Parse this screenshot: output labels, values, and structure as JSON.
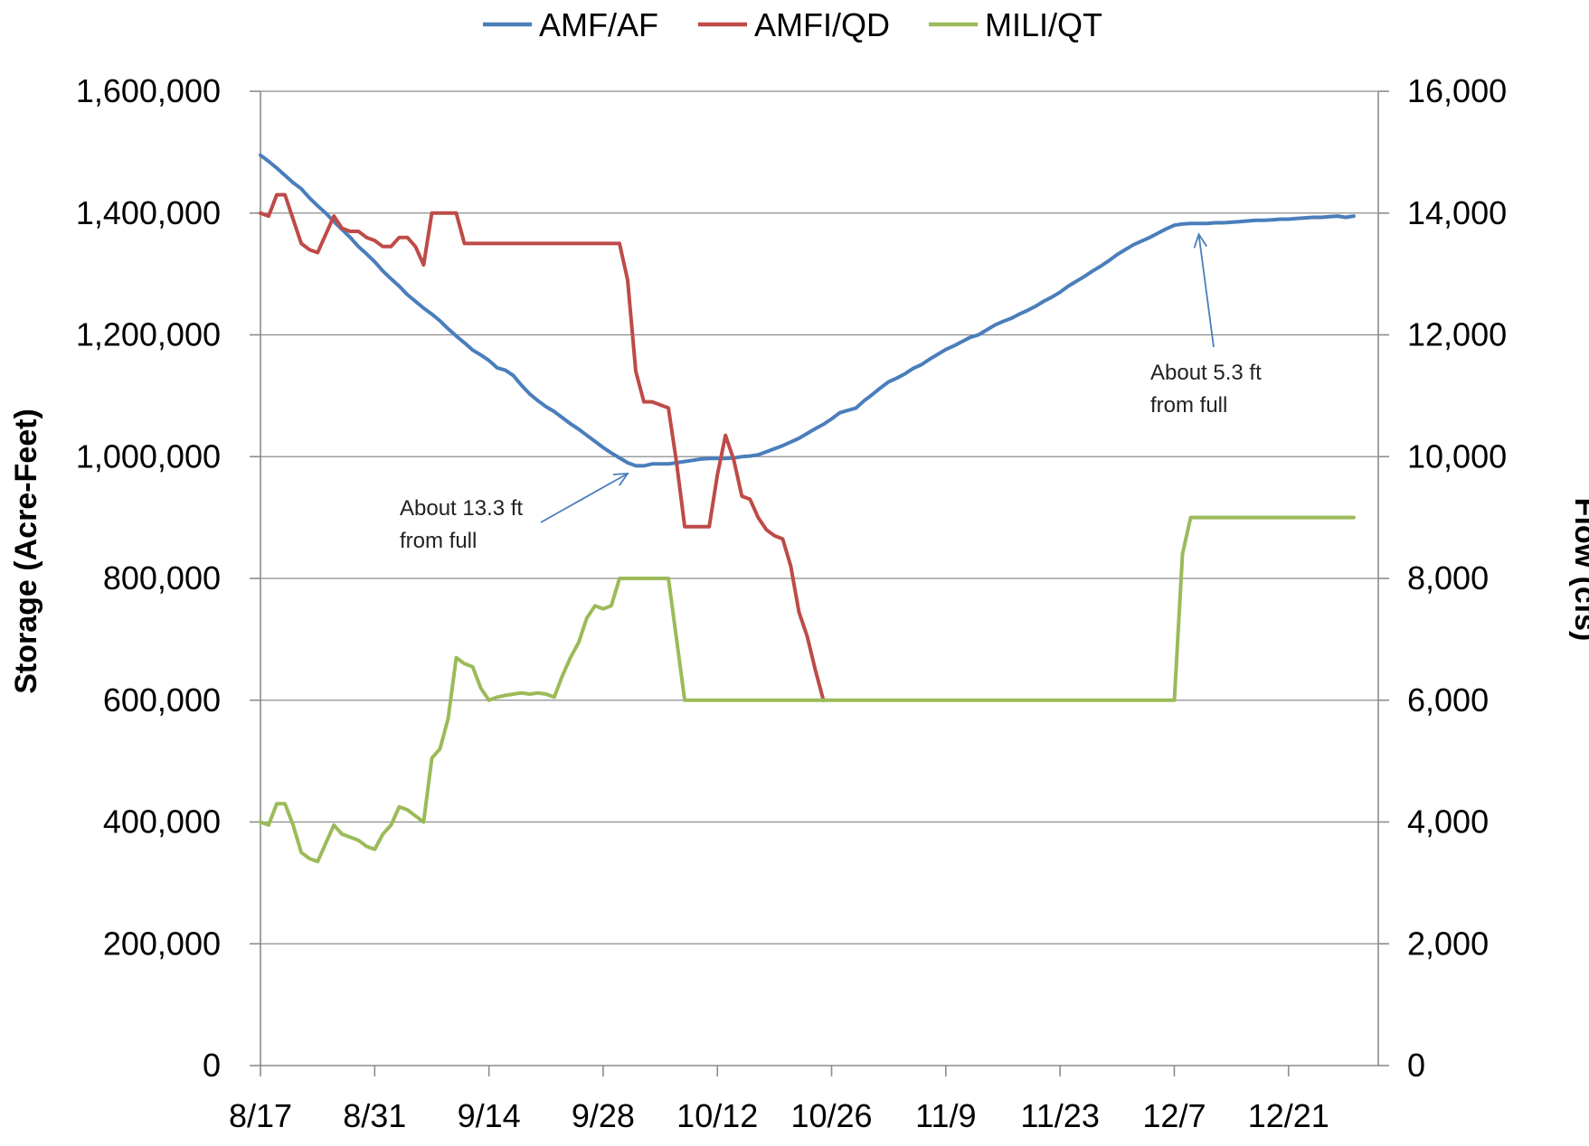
{
  "chart_data": {
    "type": "line",
    "title": "",
    "xlabel": "",
    "ylabel": "Storage (Acre-Feet)",
    "y2label": "Flow (cfs)",
    "x_ticks": [
      "8/17",
      "8/31",
      "9/14",
      "9/28",
      "10/12",
      "10/26",
      "11/9",
      "11/23",
      "12/7",
      "12/21"
    ],
    "x_range_days": [
      0,
      137
    ],
    "ylim": [
      0,
      1600000
    ],
    "y_ticks": [
      "0",
      "200,000",
      "400,000",
      "600,000",
      "800,000",
      "1,000,000",
      "1,200,000",
      "1,400,000",
      "1,600,000"
    ],
    "y2lim": [
      0,
      16000
    ],
    "y2_ticks": [
      "0",
      "2,000",
      "4,000",
      "6,000",
      "8,000",
      "10,000",
      "12,000",
      "14,000",
      "16,000"
    ],
    "grid": "horizontal",
    "legend_position": "top",
    "series": [
      {
        "name": "AMF/AF",
        "axis": "left",
        "color": "#4a7ebb",
        "points": [
          [
            "8/17",
            1495000
          ],
          [
            "8/18",
            1485000
          ],
          [
            "8/19",
            1474000
          ],
          [
            "8/20",
            1462000
          ],
          [
            "8/21",
            1450000
          ],
          [
            "8/22",
            1440000
          ],
          [
            "8/23",
            1425000
          ],
          [
            "8/24",
            1412000
          ],
          [
            "8/25",
            1400000
          ],
          [
            "8/26",
            1386000
          ],
          [
            "8/27",
            1373000
          ],
          [
            "8/28",
            1360000
          ],
          [
            "8/29",
            1345000
          ],
          [
            "8/30",
            1333000
          ],
          [
            "8/31",
            1320000
          ],
          [
            "9/1",
            1305000
          ],
          [
            "9/2",
            1292000
          ],
          [
            "9/3",
            1280000
          ],
          [
            "9/4",
            1266000
          ],
          [
            "9/5",
            1255000
          ],
          [
            "9/6",
            1244000
          ],
          [
            "9/7",
            1234000
          ],
          [
            "9/8",
            1223000
          ],
          [
            "9/9",
            1210000
          ],
          [
            "9/10",
            1198000
          ],
          [
            "9/11",
            1187000
          ],
          [
            "9/12",
            1175000
          ],
          [
            "9/13",
            1167000
          ],
          [
            "9/14",
            1158000
          ],
          [
            "9/15",
            1146000
          ],
          [
            "9/16",
            1142000
          ],
          [
            "9/17",
            1133000
          ],
          [
            "9/18",
            1117000
          ],
          [
            "9/19",
            1103000
          ],
          [
            "9/20",
            1092000
          ],
          [
            "9/21",
            1082000
          ],
          [
            "9/22",
            1074000
          ],
          [
            "9/23",
            1064000
          ],
          [
            "9/24",
            1054000
          ],
          [
            "9/25",
            1045000
          ],
          [
            "9/26",
            1035000
          ],
          [
            "9/27",
            1025000
          ],
          [
            "9/28",
            1015000
          ],
          [
            "9/29",
            1006000
          ],
          [
            "9/30",
            998000
          ],
          [
            "10/1",
            990000
          ],
          [
            "10/2",
            985000
          ],
          [
            "10/3",
            985000
          ],
          [
            "10/4",
            988000
          ],
          [
            "10/5",
            988000
          ],
          [
            "10/6",
            988000
          ],
          [
            "10/7",
            990000
          ],
          [
            "10/8",
            992000
          ],
          [
            "10/9",
            994000
          ],
          [
            "10/10",
            996000
          ],
          [
            "10/11",
            997000
          ],
          [
            "10/12",
            997000
          ],
          [
            "10/13",
            997000
          ],
          [
            "10/14",
            998000
          ],
          [
            "10/15",
            1000000
          ],
          [
            "10/16",
            1001000
          ],
          [
            "10/17",
            1003000
          ],
          [
            "10/18",
            1008000
          ],
          [
            "10/19",
            1013000
          ],
          [
            "10/20",
            1018000
          ],
          [
            "10/21",
            1024000
          ],
          [
            "10/22",
            1030000
          ],
          [
            "10/23",
            1038000
          ],
          [
            "10/24",
            1046000
          ],
          [
            "10/25",
            1053000
          ],
          [
            "10/26",
            1062000
          ],
          [
            "10/27",
            1072000
          ],
          [
            "10/28",
            1076000
          ],
          [
            "10/29",
            1080000
          ],
          [
            "10/30",
            1092000
          ],
          [
            "10/31",
            1102000
          ],
          [
            "11/1",
            1113000
          ],
          [
            "11/2",
            1123000
          ],
          [
            "11/3",
            1129000
          ],
          [
            "11/4",
            1136000
          ],
          [
            "11/5",
            1145000
          ],
          [
            "11/6",
            1151000
          ],
          [
            "11/7",
            1160000
          ],
          [
            "11/8",
            1168000
          ],
          [
            "11/9",
            1176000
          ],
          [
            "11/10",
            1182000
          ],
          [
            "11/11",
            1189000
          ],
          [
            "11/12",
            1196000
          ],
          [
            "11/13",
            1200000
          ],
          [
            "11/14",
            1208000
          ],
          [
            "11/15",
            1216000
          ],
          [
            "11/16",
            1222000
          ],
          [
            "11/17",
            1227000
          ],
          [
            "11/18",
            1234000
          ],
          [
            "11/19",
            1240000
          ],
          [
            "11/20",
            1247000
          ],
          [
            "11/21",
            1255000
          ],
          [
            "11/22",
            1262000
          ],
          [
            "11/23",
            1270000
          ],
          [
            "11/24",
            1280000
          ],
          [
            "11/25",
            1288000
          ],
          [
            "11/26",
            1296000
          ],
          [
            "11/27",
            1305000
          ],
          [
            "11/28",
            1313000
          ],
          [
            "11/29",
            1322000
          ],
          [
            "11/30",
            1332000
          ],
          [
            "12/1",
            1340000
          ],
          [
            "12/2",
            1348000
          ],
          [
            "12/3",
            1354000
          ],
          [
            "12/4",
            1360000
          ],
          [
            "12/5",
            1367000
          ],
          [
            "12/6",
            1374000
          ],
          [
            "12/7",
            1380000
          ],
          [
            "12/8",
            1382000
          ],
          [
            "12/9",
            1383000
          ],
          [
            "12/10",
            1383000
          ],
          [
            "12/11",
            1383000
          ],
          [
            "12/12",
            1384000
          ],
          [
            "12/13",
            1384000
          ],
          [
            "12/14",
            1385000
          ],
          [
            "12/15",
            1386000
          ],
          [
            "12/16",
            1387000
          ],
          [
            "12/17",
            1388000
          ],
          [
            "12/18",
            1388000
          ],
          [
            "12/19",
            1389000
          ],
          [
            "12/20",
            1390000
          ],
          [
            "12/21",
            1390000
          ],
          [
            "12/22",
            1391000
          ],
          [
            "12/23",
            1392000
          ],
          [
            "12/24",
            1393000
          ],
          [
            "12/25",
            1393000
          ],
          [
            "12/26",
            1394000
          ],
          [
            "12/27",
            1395000
          ],
          [
            "12/28",
            1393000
          ],
          [
            "12/29",
            1395000
          ]
        ]
      },
      {
        "name": "AMFI/QD",
        "axis": "right",
        "color": "#be4b48",
        "points": [
          [
            "8/17",
            14000
          ],
          [
            "8/18",
            13950
          ],
          [
            "8/19",
            14300
          ],
          [
            "8/20",
            14300
          ],
          [
            "8/21",
            13900
          ],
          [
            "8/22",
            13500
          ],
          [
            "8/23",
            13400
          ],
          [
            "8/24",
            13350
          ],
          [
            "8/25",
            13650
          ],
          [
            "8/26",
            13950
          ],
          [
            "8/27",
            13750
          ],
          [
            "8/28",
            13700
          ],
          [
            "8/29",
            13700
          ],
          [
            "8/30",
            13600
          ],
          [
            "8/31",
            13550
          ],
          [
            "9/1",
            13450
          ],
          [
            "9/2",
            13450
          ],
          [
            "9/3",
            13600
          ],
          [
            "9/4",
            13600
          ],
          [
            "9/5",
            13450
          ],
          [
            "9/6",
            13150
          ],
          [
            "9/7",
            14000
          ],
          [
            "9/8",
            14000
          ],
          [
            "9/9",
            14000
          ],
          [
            "9/10",
            14000
          ],
          [
            "9/11",
            13500
          ],
          [
            "9/12",
            13500
          ],
          [
            "9/14",
            13500
          ],
          [
            "9/28",
            13500
          ],
          [
            "9/29",
            13500
          ],
          [
            "9/30",
            13500
          ],
          [
            "10/1",
            12900
          ],
          [
            "10/2",
            11400
          ],
          [
            "10/3",
            10900
          ],
          [
            "10/4",
            10900
          ],
          [
            "10/5",
            10850
          ],
          [
            "10/6",
            10800
          ],
          [
            "10/7",
            9900
          ],
          [
            "10/8",
            8850
          ],
          [
            "10/9",
            8850
          ],
          [
            "10/10",
            8850
          ],
          [
            "10/11",
            8850
          ],
          [
            "10/12",
            9700
          ],
          [
            "10/13",
            10350
          ],
          [
            "10/14",
            9950
          ],
          [
            "10/15",
            9350
          ],
          [
            "10/16",
            9300
          ],
          [
            "10/17",
            9000
          ],
          [
            "10/18",
            8800
          ],
          [
            "10/19",
            8700
          ],
          [
            "10/20",
            8650
          ],
          [
            "10/21",
            8200
          ],
          [
            "10/22",
            7450
          ],
          [
            "10/23",
            7050
          ],
          [
            "10/24",
            6500
          ],
          [
            "10/25",
            6000
          ]
        ]
      },
      {
        "name": "MILI/QT",
        "axis": "right",
        "color": "#9bbb59",
        "points": [
          [
            "8/17",
            4000
          ],
          [
            "8/18",
            3950
          ],
          [
            "8/19",
            4300
          ],
          [
            "8/20",
            4300
          ],
          [
            "8/21",
            3950
          ],
          [
            "8/22",
            3500
          ],
          [
            "8/23",
            3400
          ],
          [
            "8/24",
            3350
          ],
          [
            "8/25",
            3650
          ],
          [
            "8/26",
            3950
          ],
          [
            "8/27",
            3800
          ],
          [
            "8/28",
            3750
          ],
          [
            "8/29",
            3700
          ],
          [
            "8/30",
            3600
          ],
          [
            "8/31",
            3550
          ],
          [
            "9/1",
            3800
          ],
          [
            "9/2",
            3950
          ],
          [
            "9/3",
            4250
          ],
          [
            "9/4",
            4200
          ],
          [
            "9/5",
            4100
          ],
          [
            "9/6",
            4000
          ],
          [
            "9/7",
            5050
          ],
          [
            "9/8",
            5200
          ],
          [
            "9/9",
            5700
          ],
          [
            "9/10",
            6700
          ],
          [
            "9/11",
            6600
          ],
          [
            "9/12",
            6550
          ],
          [
            "9/13",
            6200
          ],
          [
            "9/14",
            6000
          ],
          [
            "9/15",
            6050
          ],
          [
            "9/16",
            6080
          ],
          [
            "9/17",
            6100
          ],
          [
            "9/18",
            6120
          ],
          [
            "9/19",
            6100
          ],
          [
            "9/20",
            6120
          ],
          [
            "9/21",
            6100
          ],
          [
            "9/22",
            6050
          ],
          [
            "9/23",
            6400
          ],
          [
            "9/24",
            6700
          ],
          [
            "9/25",
            6950
          ],
          [
            "9/26",
            7350
          ],
          [
            "9/27",
            7550
          ],
          [
            "9/28",
            7500
          ],
          [
            "9/29",
            7550
          ],
          [
            "9/30",
            8000
          ],
          [
            "10/1",
            8000
          ],
          [
            "10/2",
            8000
          ],
          [
            "10/3",
            8000
          ],
          [
            "10/4",
            8000
          ],
          [
            "10/5",
            8000
          ],
          [
            "10/6",
            8000
          ],
          [
            "10/7",
            7000
          ],
          [
            "10/8",
            6000
          ],
          [
            "10/9",
            6000
          ],
          [
            "10/26",
            6000
          ],
          [
            "11/23",
            6000
          ],
          [
            "12/7",
            6000
          ],
          [
            "12/8",
            8400
          ],
          [
            "12/9",
            9000
          ],
          [
            "12/10",
            9000
          ],
          [
            "12/21",
            9000
          ],
          [
            "12/29",
            9000
          ]
        ]
      }
    ],
    "annotations": [
      {
        "lines": [
          "About 13.3 ft",
          "from full"
        ],
        "series": "AMF/AF",
        "points_to": [
          "10/1",
          990000
        ]
      },
      {
        "lines": [
          "About 5.3 ft",
          "from full"
        ],
        "series": "AMF/AF",
        "points_to": [
          "12/10",
          1383000
        ]
      }
    ]
  }
}
